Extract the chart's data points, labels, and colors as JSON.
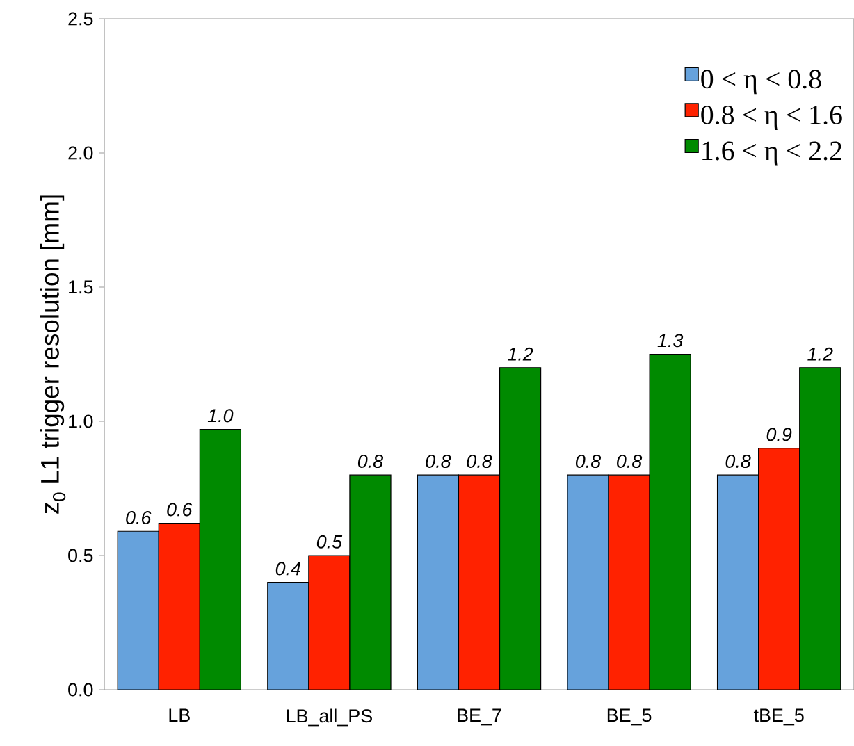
{
  "chart_data": {
    "type": "bar",
    "ylabel": "z$_{0}$ L1 trigger resolution [mm]",
    "categories": [
      "LB",
      "LB_all_PS",
      "BE_7",
      "BE_5",
      "tBE_5"
    ],
    "series": [
      {
        "name": "0 < η < 0.8",
        "color": "#66a2dc",
        "values": [
          0.59,
          0.4,
          0.8,
          0.8,
          0.8
        ],
        "value_labels": [
          "0.6",
          "0.4",
          "0.8",
          "0.8",
          "0.8"
        ]
      },
      {
        "name": "0.8 < η < 1.6",
        "color": "#ff2200",
        "values": [
          0.62,
          0.5,
          0.8,
          0.8,
          0.9
        ],
        "value_labels": [
          "0.6",
          "0.5",
          "0.8",
          "0.8",
          "0.9"
        ]
      },
      {
        "name": "1.6 < η < 2.2",
        "color": "#008a00",
        "values": [
          0.97,
          0.8,
          1.2,
          1.25,
          1.2
        ],
        "value_labels": [
          "1.0",
          "0.8",
          "1.2",
          "1.3",
          "1.2"
        ]
      }
    ],
    "ylim": [
      0,
      2.5
    ],
    "yticks": [
      {
        "value": 0,
        "label": "0.0"
      },
      0.5,
      {
        "value": 1,
        "label": "1.0"
      },
      1.5,
      {
        "value": 2,
        "label": "2.0"
      },
      2.5
    ],
    "grid": false,
    "legend": "top right"
  }
}
